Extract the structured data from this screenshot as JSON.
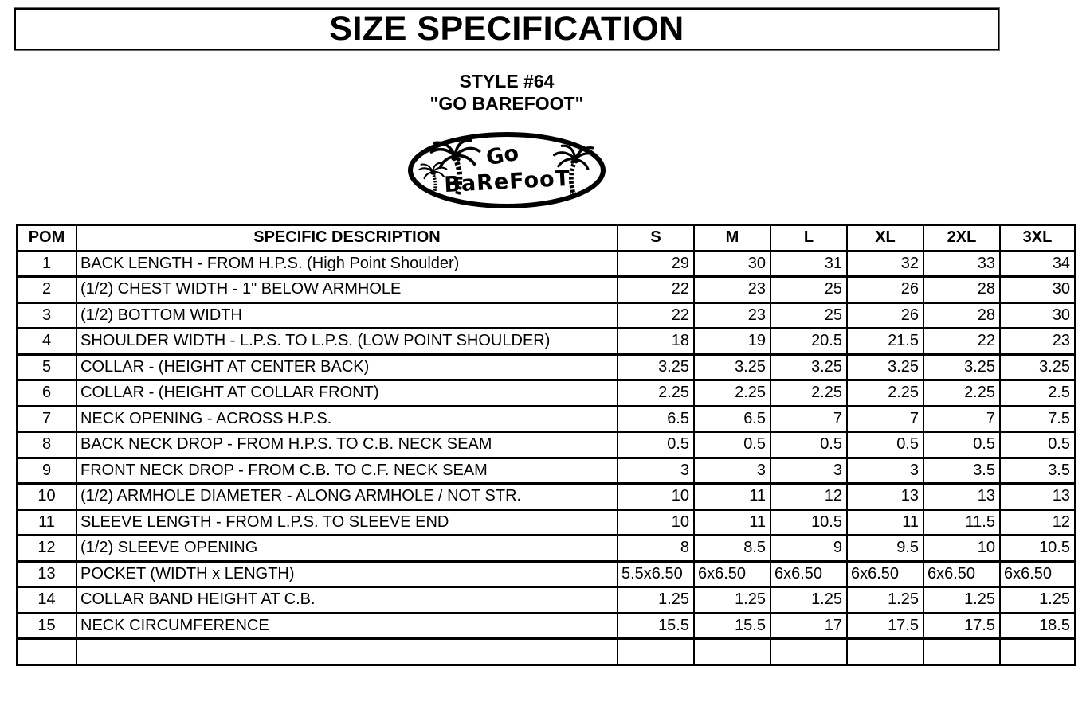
{
  "title": "SIZE SPECIFICATION",
  "style_block": {
    "style_number": "STYLE #64",
    "style_name": "\"GO BAREFOOT\""
  },
  "logo": {
    "word1": "Go",
    "word2": "BaReFooT",
    "registered_mark": "®"
  },
  "colors": {
    "text": "#000000",
    "border": "#000000",
    "background": "#ffffff"
  },
  "table": {
    "headers": [
      "POM",
      "SPECIFIC DESCRIPTION",
      "S",
      "M",
      "L",
      "XL",
      "2XL",
      "3XL"
    ],
    "rows": [
      {
        "pom": "1",
        "desc": "BACK LENGTH - FROM H.P.S. (High Point Shoulder)",
        "align": "right",
        "values": [
          "29",
          "30",
          "31",
          "32",
          "33",
          "34"
        ]
      },
      {
        "pom": "2",
        "desc": "(1/2) CHEST WIDTH - 1\" BELOW ARMHOLE",
        "align": "right",
        "values": [
          "22",
          "23",
          "25",
          "26",
          "28",
          "30"
        ]
      },
      {
        "pom": "3",
        "desc": "(1/2) BOTTOM WIDTH",
        "align": "right",
        "values": [
          "22",
          "23",
          "25",
          "26",
          "28",
          "30"
        ]
      },
      {
        "pom": "4",
        "desc": "SHOULDER WIDTH - L.P.S. TO L.P.S. (LOW POINT SHOULDER)",
        "align": "right",
        "values": [
          "18",
          "19",
          "20.5",
          "21.5",
          "22",
          "23"
        ]
      },
      {
        "pom": "5",
        "desc": "COLLAR - (HEIGHT AT CENTER BACK)",
        "align": "right",
        "values": [
          "3.25",
          "3.25",
          "3.25",
          "3.25",
          "3.25",
          "3.25"
        ]
      },
      {
        "pom": "6",
        "desc": "COLLAR - (HEIGHT AT COLLAR FRONT)",
        "align": "right",
        "values": [
          "2.25",
          "2.25",
          "2.25",
          "2.25",
          "2.25",
          "2.5"
        ]
      },
      {
        "pom": "7",
        "desc": "NECK OPENING - ACROSS H.P.S.",
        "align": "right",
        "values": [
          "6.5",
          "6.5",
          "7",
          "7",
          "7",
          "7.5"
        ]
      },
      {
        "pom": "8",
        "desc": "BACK NECK DROP - FROM H.P.S. TO C.B. NECK SEAM",
        "align": "right",
        "values": [
          "0.5",
          "0.5",
          "0.5",
          "0.5",
          "0.5",
          "0.5"
        ]
      },
      {
        "pom": "9",
        "desc": "FRONT NECK DROP - FROM C.B. TO C.F. NECK SEAM",
        "align": "right",
        "values": [
          "3",
          "3",
          "3",
          "3",
          "3.5",
          "3.5"
        ]
      },
      {
        "pom": "10",
        "desc": "(1/2) ARMHOLE DIAMETER - ALONG ARMHOLE / NOT STR.",
        "align": "right",
        "values": [
          "10",
          "11",
          "12",
          "13",
          "13",
          "13"
        ]
      },
      {
        "pom": "11",
        "desc": "SLEEVE LENGTH - FROM L.P.S. TO SLEEVE END",
        "align": "right",
        "values": [
          "10",
          "11",
          "10.5",
          "11",
          "11.5",
          "12"
        ]
      },
      {
        "pom": "12",
        "desc": "(1/2) SLEEVE OPENING",
        "align": "right",
        "values": [
          "8",
          "8.5",
          "9",
          "9.5",
          "10",
          "10.5"
        ]
      },
      {
        "pom": "13",
        "desc": "POCKET (WIDTH x LENGTH)",
        "align": "left",
        "values": [
          "5.5x6.50",
          "6x6.50",
          "6x6.50",
          "6x6.50",
          "6x6.50",
          "6x6.50"
        ]
      },
      {
        "pom": "14",
        "desc": "COLLAR BAND HEIGHT AT C.B.",
        "align": "right",
        "values": [
          "1.25",
          "1.25",
          "1.25",
          "1.25",
          "1.25",
          "1.25"
        ]
      },
      {
        "pom": "15",
        "desc": "NECK CIRCUMFERENCE",
        "align": "right",
        "values": [
          "15.5",
          "15.5",
          "17",
          "17.5",
          "17.5",
          "18.5"
        ]
      },
      {
        "pom": "",
        "desc": "",
        "align": "right",
        "values": [
          "",
          "",
          "",
          "",
          "",
          ""
        ]
      }
    ]
  }
}
